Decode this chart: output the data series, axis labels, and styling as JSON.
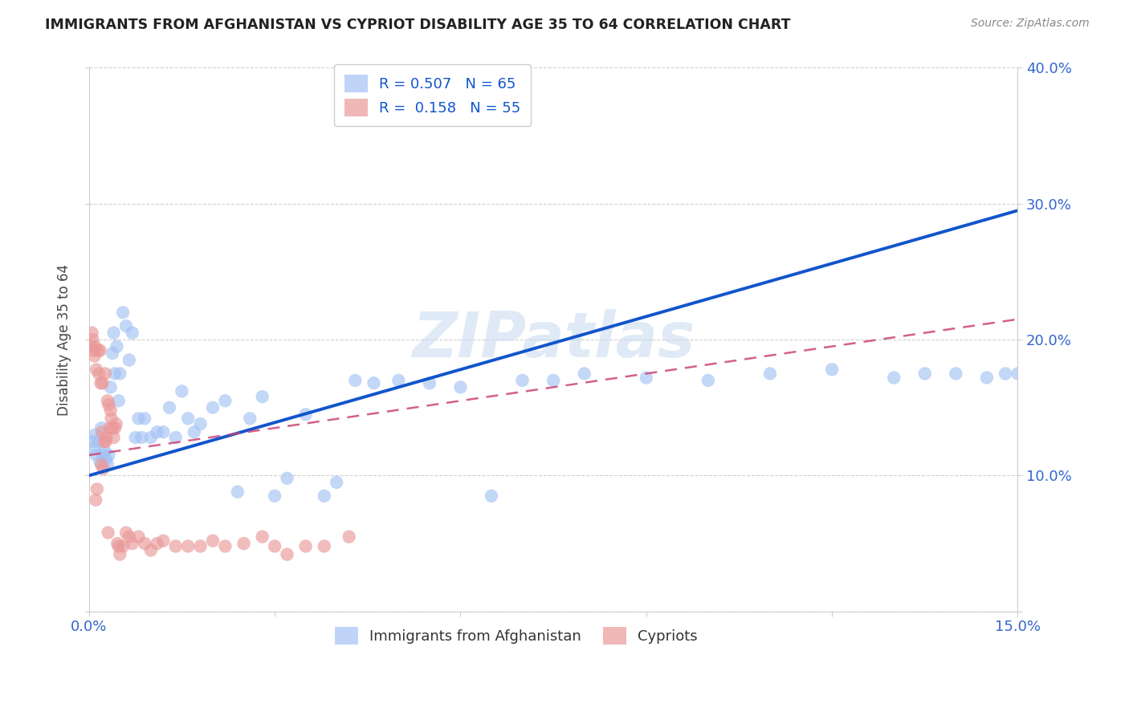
{
  "title": "IMMIGRANTS FROM AFGHANISTAN VS CYPRIOT DISABILITY AGE 35 TO 64 CORRELATION CHART",
  "source": "Source: ZipAtlas.com",
  "ylabel": "Disability Age 35 to 64",
  "x_min": 0.0,
  "x_max": 0.15,
  "y_min": 0.0,
  "y_max": 0.4,
  "x_ticks": [
    0.0,
    0.03,
    0.06,
    0.09,
    0.12,
    0.15
  ],
  "x_tick_labels": [
    "0.0%",
    "",
    "",
    "",
    "",
    "15.0%"
  ],
  "y_ticks": [
    0.0,
    0.1,
    0.2,
    0.3,
    0.4
  ],
  "y_tick_labels": [
    "",
    "10.0%",
    "20.0%",
    "30.0%",
    "40.0%"
  ],
  "series1_label": "Immigrants from Afghanistan",
  "series1_R": "0.507",
  "series1_N": "65",
  "series1_color": "#a4c2f4",
  "series2_label": "Cypriots",
  "series2_R": "0.158",
  "series2_N": "55",
  "series2_color": "#ea9999",
  "watermark": "ZIPatlas",
  "line1_color": "#1155cc",
  "line2_color": "#cc4477",
  "legend_text_color": "#1155cc",
  "background_color": "#ffffff",
  "grid_color": "#bbbbbb",
  "series1_x": [
    0.0005,
    0.0008,
    0.001,
    0.0012,
    0.0015,
    0.0018,
    0.002,
    0.0022,
    0.0025,
    0.0028,
    0.003,
    0.0032,
    0.0035,
    0.0038,
    0.004,
    0.0042,
    0.0045,
    0.0048,
    0.005,
    0.0055,
    0.006,
    0.0065,
    0.007,
    0.0075,
    0.008,
    0.0085,
    0.009,
    0.01,
    0.011,
    0.012,
    0.013,
    0.014,
    0.015,
    0.016,
    0.017,
    0.018,
    0.02,
    0.022,
    0.024,
    0.026,
    0.028,
    0.03,
    0.032,
    0.035,
    0.038,
    0.04,
    0.043,
    0.046,
    0.05,
    0.055,
    0.06,
    0.065,
    0.07,
    0.075,
    0.08,
    0.09,
    0.1,
    0.11,
    0.12,
    0.13,
    0.135,
    0.14,
    0.145,
    0.148,
    0.15
  ],
  "series1_y": [
    0.125,
    0.12,
    0.13,
    0.115,
    0.125,
    0.11,
    0.135,
    0.115,
    0.118,
    0.112,
    0.108,
    0.115,
    0.165,
    0.19,
    0.205,
    0.175,
    0.195,
    0.155,
    0.175,
    0.22,
    0.21,
    0.185,
    0.205,
    0.128,
    0.142,
    0.128,
    0.142,
    0.128,
    0.132,
    0.132,
    0.15,
    0.128,
    0.162,
    0.142,
    0.132,
    0.138,
    0.15,
    0.155,
    0.088,
    0.142,
    0.158,
    0.085,
    0.098,
    0.145,
    0.085,
    0.095,
    0.17,
    0.168,
    0.17,
    0.168,
    0.165,
    0.085,
    0.17,
    0.17,
    0.175,
    0.172,
    0.17,
    0.175,
    0.178,
    0.172,
    0.175,
    0.175,
    0.172,
    0.175,
    0.175
  ],
  "series2_x": [
    0.0003,
    0.0005,
    0.0006,
    0.0008,
    0.0009,
    0.001,
    0.0011,
    0.0012,
    0.0013,
    0.0015,
    0.0016,
    0.0018,
    0.0019,
    0.002,
    0.0021,
    0.0022,
    0.0023,
    0.0025,
    0.0026,
    0.0027,
    0.0028,
    0.003,
    0.0031,
    0.0032,
    0.0034,
    0.0035,
    0.0036,
    0.0038,
    0.004,
    0.0042,
    0.0044,
    0.0046,
    0.0048,
    0.005,
    0.0055,
    0.006,
    0.0065,
    0.007,
    0.008,
    0.009,
    0.01,
    0.011,
    0.012,
    0.014,
    0.016,
    0.018,
    0.02,
    0.022,
    0.025,
    0.028,
    0.03,
    0.032,
    0.035,
    0.038,
    0.042
  ],
  "series2_y": [
    0.195,
    0.205,
    0.2,
    0.192,
    0.188,
    0.195,
    0.082,
    0.178,
    0.09,
    0.192,
    0.175,
    0.192,
    0.168,
    0.108,
    0.132,
    0.168,
    0.105,
    0.125,
    0.175,
    0.125,
    0.128,
    0.155,
    0.058,
    0.152,
    0.135,
    0.148,
    0.142,
    0.135,
    0.128,
    0.135,
    0.138,
    0.05,
    0.048,
    0.042,
    0.048,
    0.058,
    0.055,
    0.05,
    0.055,
    0.05,
    0.045,
    0.05,
    0.052,
    0.048,
    0.048,
    0.048,
    0.052,
    0.048,
    0.05,
    0.055,
    0.048,
    0.042,
    0.048,
    0.048,
    0.055
  ],
  "line1_x0": 0.0,
  "line1_y0": 0.1,
  "line1_x1": 0.15,
  "line1_y1": 0.295,
  "line2_x0": 0.0,
  "line2_y0": 0.115,
  "line2_x1": 0.15,
  "line2_y1": 0.215
}
